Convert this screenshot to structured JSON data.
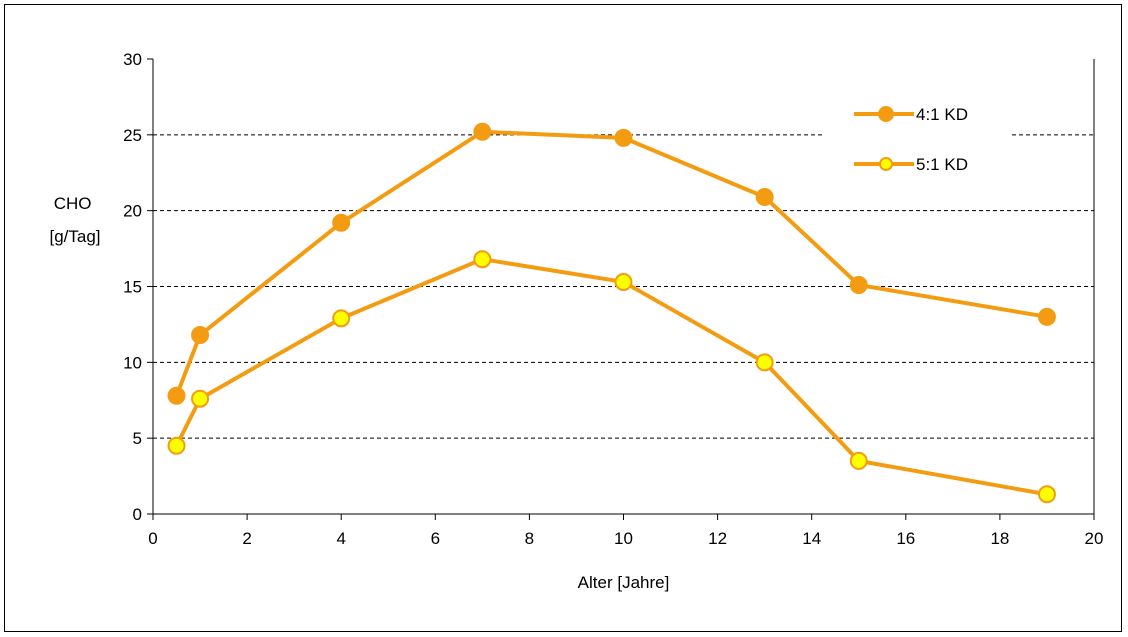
{
  "chart_data": {
    "type": "line",
    "title": "",
    "xlabel": "Alter [Jahre]",
    "ylabel": [
      "CHO",
      "[g/Tag]"
    ],
    "xlim": [
      0,
      20
    ],
    "ylim": [
      0,
      30
    ],
    "xticks": [
      0,
      2,
      4,
      6,
      8,
      10,
      12,
      14,
      16,
      18,
      20
    ],
    "yticks": [
      0,
      5,
      10,
      15,
      20,
      25,
      30
    ],
    "grid": "horizontal-dashed",
    "legend_position": "top-right",
    "series": [
      {
        "name": "4:1 KD",
        "color": "#f39c12",
        "marker_fill": "#f39c12",
        "x": [
          0.5,
          1,
          4,
          7,
          10,
          13,
          15,
          19
        ],
        "y": [
          7.8,
          11.8,
          19.2,
          25.2,
          24.8,
          20.9,
          15.1,
          13.0
        ]
      },
      {
        "name": "5:1 KD",
        "color": "#f39c12",
        "marker_fill": "#ffff00",
        "x": [
          0.5,
          1,
          4,
          7,
          10,
          13,
          15,
          19
        ],
        "y": [
          4.5,
          7.6,
          12.9,
          16.8,
          15.3,
          10.0,
          3.5,
          1.3
        ]
      }
    ]
  }
}
